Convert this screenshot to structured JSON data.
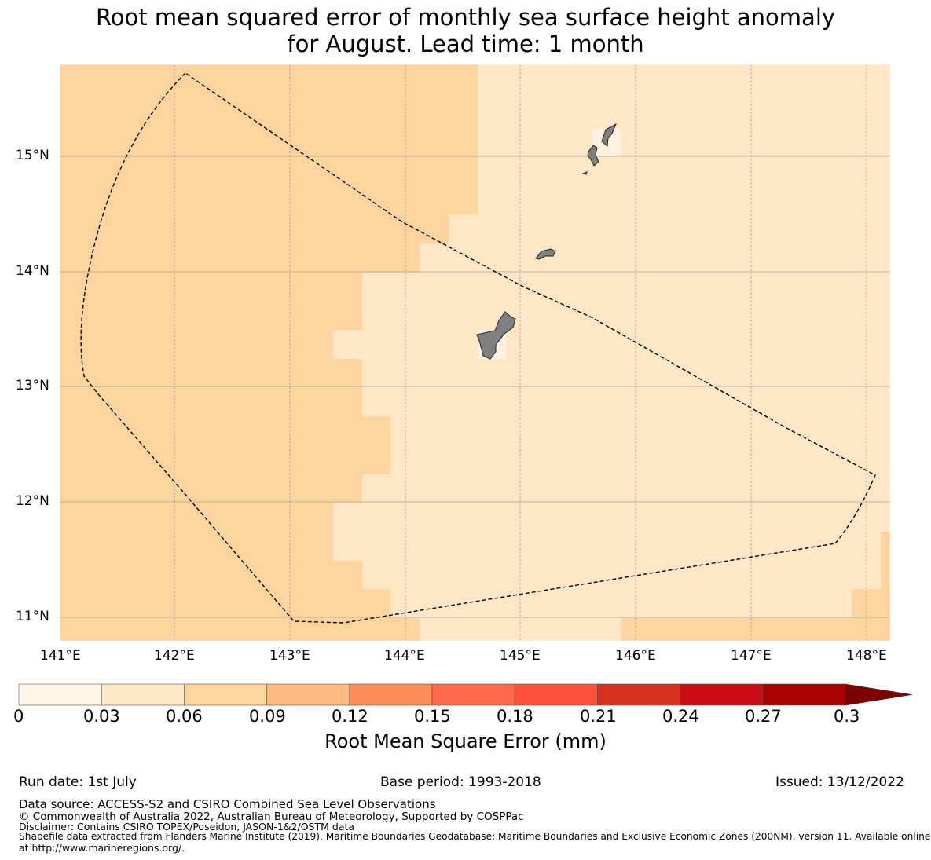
{
  "title": {
    "line1": "Root mean squared error of monthly sea surface height anomaly",
    "line2": "for August. Lead time: 1 month"
  },
  "map": {
    "lon_ticks": [
      "141°E",
      "142°E",
      "143°E",
      "144°E",
      "145°E",
      "146°E",
      "147°E",
      "148°E"
    ],
    "lat_ticks": [
      "15°N",
      "14°N",
      "13°N",
      "12°N",
      "11°N"
    ],
    "colors": {
      "bin_003_006": "#fee6c6",
      "bin_006_009": "#fdd49e",
      "land": "#808080",
      "grid": "#999999"
    },
    "regions": [
      {
        "name": "west-zone",
        "value_range": [
          0.06,
          0.09
        ]
      },
      {
        "name": "east-zone",
        "value_range": [
          0.03,
          0.06
        ]
      }
    ],
    "eez_boundary": "dashed"
  },
  "colorbar": {
    "ticks": [
      "0",
      "0.03",
      "0.06",
      "0.09",
      "0.12",
      "0.15",
      "0.18",
      "0.21",
      "0.24",
      "0.27",
      "0.3"
    ],
    "colors": [
      "#fff5e6",
      "#fee6c6",
      "#fdd49e",
      "#fdbb84",
      "#fc8d59",
      "#fe6a4a",
      "#fd5038",
      "#d7301f",
      "#c90d14",
      "#a90000",
      "#7f0000"
    ],
    "label": "Root Mean Square Error (mm)"
  },
  "footer": {
    "run_date": "Run date: 1st July",
    "base_period": "Base period: 1993-2018",
    "issued": "Issued: 13/12/2022",
    "data_source": "Data source: ACCESS-S2 and CSIRO Combined Sea Level Observations",
    "copyright": "© Commonwealth of Australia 2022, Australian Bureau of Meteorology, Supported by COSPPac",
    "disclaimer": "Disclaimer: Contains CSIRO TOPEX/Poseidon, JASON-1&2/OSTM data",
    "shapefile_line1": "Shapefile data extracted from Flanders Marine Institute (2019), Maritime Boundaries Geodatabase: Maritime Boundaries and Exclusive Economic Zones (200NM), version 11. Available online",
    "shapefile_line2": "at http://www.marineregions.org/."
  }
}
